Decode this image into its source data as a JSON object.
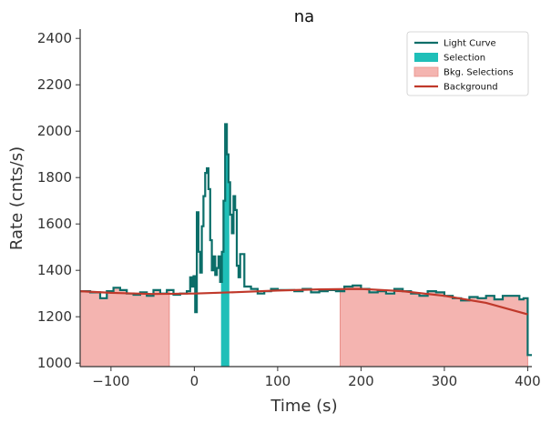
{
  "chart_data": {
    "type": "line",
    "title": "na",
    "xlabel": "Time (s)",
    "ylabel": "Rate (cnts/s)",
    "xlim": [
      -137,
      405
    ],
    "ylim": [
      985,
      2440
    ],
    "xticks": [
      -100,
      0,
      100,
      200,
      300,
      400
    ],
    "xtick_labels": [
      "−100",
      "0",
      "100",
      "200",
      "300",
      "400"
    ],
    "yticks": [
      1000,
      1200,
      1400,
      1600,
      1800,
      2000,
      2200,
      2400
    ],
    "ytick_labels": [
      "1000",
      "1200",
      "1400",
      "1600",
      "1800",
      "2000",
      "2200",
      "2400"
    ],
    "grid": false,
    "legend_position": "top-right",
    "legend": [
      {
        "label": "Light Curve",
        "kind": "line",
        "color": "#0b6e69"
      },
      {
        "label": "Selection",
        "kind": "patch",
        "color": "#1fbfb8"
      },
      {
        "label": "Bkg. Selections",
        "kind": "patch",
        "color": "#f4b4b0"
      },
      {
        "label": "Background",
        "kind": "line",
        "color": "#c0392b"
      }
    ],
    "colors": {
      "light_curve": "#0b6e69",
      "selection": "#1fbfb8",
      "bkg_selection": "#f4b4b0",
      "bkg_edge": "#e8908a",
      "background": "#c0392b"
    },
    "selection_interval": [
      32,
      42
    ],
    "bkg_intervals": [
      [
        -137,
        -30
      ],
      [
        175,
        405
      ]
    ],
    "background_curve": {
      "x": [
        -137,
        -100,
        -50,
        0,
        50,
        100,
        150,
        200,
        250,
        300,
        350,
        400
      ],
      "y": [
        1310,
        1303,
        1298,
        1300,
        1306,
        1313,
        1318,
        1320,
        1310,
        1290,
        1260,
        1210
      ]
    },
    "light_curve": {
      "x": [
        -137,
        -125,
        -113,
        -105,
        -97,
        -89,
        -81,
        -73,
        -65,
        -57,
        -49,
        -41,
        -33,
        -25,
        -17,
        -9,
        -5,
        -3,
        -1,
        1,
        3,
        5,
        7,
        9,
        11,
        13,
        15,
        17,
        19,
        21,
        23,
        25,
        27,
        29,
        31,
        33,
        35,
        37,
        39,
        41,
        43,
        45,
        47,
        49,
        51,
        53,
        55,
        60,
        68,
        76,
        84,
        92,
        100,
        110,
        120,
        130,
        140,
        150,
        160,
        170,
        180,
        190,
        200,
        210,
        220,
        230,
        240,
        250,
        260,
        270,
        280,
        290,
        300,
        310,
        320,
        330,
        340,
        350,
        360,
        370,
        380,
        390,
        395,
        400
      ],
      "y": [
        1310,
        1305,
        1280,
        1310,
        1325,
        1315,
        1300,
        1295,
        1305,
        1290,
        1315,
        1300,
        1315,
        1295,
        1300,
        1310,
        1370,
        1330,
        1375,
        1220,
        1650,
        1480,
        1390,
        1590,
        1720,
        1820,
        1840,
        1750,
        1530,
        1400,
        1460,
        1380,
        1410,
        1460,
        1350,
        1480,
        1700,
        2030,
        1900,
        1780,
        1640,
        1560,
        1720,
        1660,
        1420,
        1370,
        1470,
        1330,
        1320,
        1300,
        1310,
        1320,
        1315,
        1315,
        1310,
        1320,
        1305,
        1310,
        1315,
        1310,
        1330,
        1335,
        1320,
        1305,
        1310,
        1300,
        1320,
        1310,
        1300,
        1290,
        1310,
        1305,
        1290,
        1280,
        1270,
        1285,
        1280,
        1290,
        1275,
        1290,
        1290,
        1275,
        1280,
        1035
      ]
    }
  }
}
